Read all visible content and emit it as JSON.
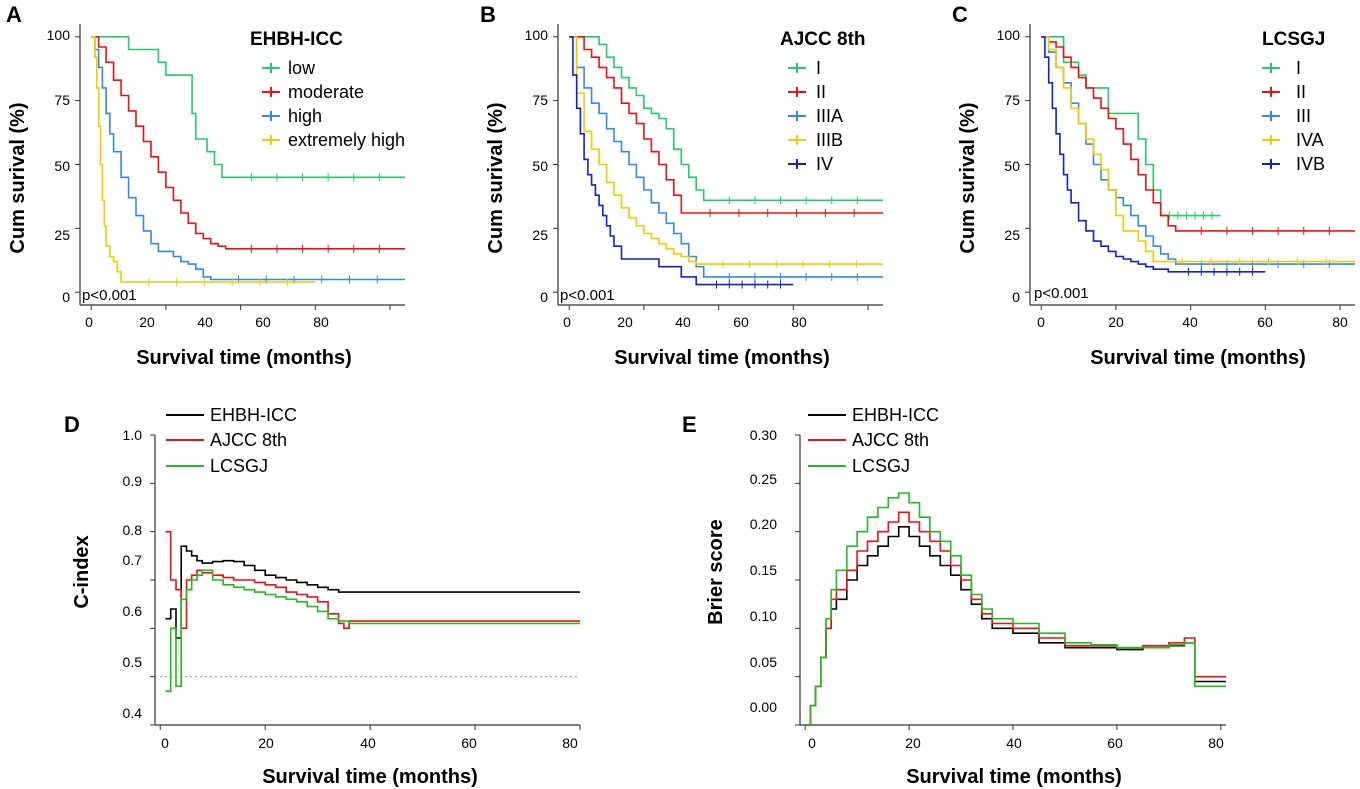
{
  "charts": [
    {
      "id": "A",
      "type": "line",
      "label": "A",
      "legend_title": "EHBH-ICC",
      "xlabel": "Survival time (months)",
      "ylabel": "Cum surival (%)",
      "xlim": [
        -3,
        84
      ],
      "ylim": [
        -5,
        105
      ],
      "xticks": [
        "0",
        "20",
        "40",
        "60",
        "80"
      ],
      "yticks": [
        "0",
        "25",
        "50",
        "75",
        "100"
      ],
      "p_text": "p<0.001",
      "series": [
        {
          "name": "low",
          "color": "#22cc66",
          "x": [
            0,
            8,
            10,
            11,
            12,
            13,
            14,
            15,
            16,
            17,
            18,
            19,
            20,
            21,
            22,
            23,
            24,
            25,
            26,
            27,
            28,
            29,
            30,
            31,
            32,
            33,
            34,
            35,
            36,
            84
          ],
          "y": [
            100,
            100,
            95,
            95,
            95,
            95,
            95,
            95,
            95,
            95,
            90,
            90,
            85,
            85,
            85,
            85,
            85,
            85,
            85,
            70,
            60,
            60,
            60,
            55,
            55,
            50,
            50,
            45,
            45,
            45
          ]
        },
        {
          "name": "moderate",
          "color": "#ee1111",
          "x": [
            0,
            2,
            4,
            6,
            8,
            10,
            12,
            14,
            16,
            18,
            20,
            22,
            24,
            26,
            28,
            30,
            32,
            34,
            36,
            84
          ],
          "y": [
            100,
            96,
            90,
            83,
            77,
            71,
            65,
            59,
            53,
            47,
            41,
            36,
            31,
            27,
            23,
            21,
            19,
            18,
            17,
            17
          ]
        },
        {
          "name": "high",
          "color": "#3388ee",
          "x": [
            0,
            1,
            2,
            3,
            4,
            5,
            6,
            8,
            10,
            12,
            14,
            16,
            18,
            20,
            22,
            24,
            26,
            28,
            30,
            32,
            84
          ],
          "y": [
            100,
            95,
            88,
            80,
            70,
            62,
            55,
            45,
            37,
            30,
            24,
            19,
            16,
            16,
            14,
            12,
            11,
            9,
            6,
            5,
            5
          ]
        },
        {
          "name": "extremely high",
          "color": "#f2cc00",
          "x": [
            0,
            1,
            1.5,
            2,
            2.5,
            3,
            3.5,
            4,
            5,
            6,
            7,
            8,
            60
          ],
          "y": [
            100,
            92,
            80,
            65,
            50,
            36,
            26,
            18,
            14,
            12,
            8,
            4,
            4
          ]
        }
      ]
    },
    {
      "id": "B",
      "type": "line",
      "label": "B",
      "legend_title": "AJCC 8th",
      "xlabel": "Survival time (months)",
      "ylabel": "Cum surival (%)",
      "xlim": [
        -3,
        84
      ],
      "ylim": [
        -5,
        105
      ],
      "xticks": [
        "0",
        "20",
        "40",
        "60",
        "80"
      ],
      "yticks": [
        "0",
        "25",
        "50",
        "75",
        "100"
      ],
      "p_text": "p<0.001",
      "series": [
        {
          "name": "I",
          "color": "#22cc66",
          "x": [
            0,
            8,
            10,
            12,
            14,
            16,
            18,
            20,
            22,
            24,
            26,
            28,
            30,
            32,
            34,
            36,
            84
          ],
          "y": [
            100,
            97,
            92,
            88,
            84,
            80,
            77,
            72,
            70,
            68,
            64,
            56,
            50,
            45,
            40,
            36,
            36
          ]
        },
        {
          "name": "II",
          "color": "#ee1111",
          "x": [
            0,
            4,
            6,
            8,
            10,
            12,
            14,
            16,
            18,
            20,
            22,
            24,
            26,
            28,
            30,
            84
          ],
          "y": [
            100,
            95,
            92,
            88,
            84,
            80,
            74,
            70,
            66,
            60,
            55,
            50,
            44,
            38,
            31,
            31
          ]
        },
        {
          "name": "IIIA",
          "color": "#3388ee",
          "x": [
            0,
            2,
            4,
            6,
            8,
            10,
            12,
            14,
            16,
            18,
            20,
            22,
            24,
            26,
            28,
            30,
            32,
            34,
            36,
            84
          ],
          "y": [
            100,
            88,
            80,
            74,
            70,
            64,
            59,
            55,
            50,
            45,
            40,
            35,
            31,
            27,
            23,
            19,
            14,
            10,
            6,
            6
          ]
        },
        {
          "name": "IIIB",
          "color": "#f2cc00",
          "x": [
            0,
            2,
            4,
            6,
            8,
            10,
            12,
            14,
            16,
            18,
            20,
            22,
            24,
            26,
            28,
            30,
            32,
            34,
            84
          ],
          "y": [
            100,
            78,
            63,
            56,
            50,
            43,
            38,
            33,
            29,
            26,
            23,
            21,
            19,
            17,
            15,
            14,
            12,
            11,
            11
          ]
        },
        {
          "name": "IV",
          "color": "#1122cc",
          "x": [
            0,
            1,
            2,
            3,
            4,
            5,
            6,
            7,
            8,
            9,
            10,
            11,
            12,
            14,
            16,
            18,
            20,
            22,
            24,
            26,
            28,
            30,
            32,
            34,
            36,
            60
          ],
          "y": [
            100,
            85,
            72,
            62,
            52,
            46,
            42,
            38,
            34,
            30,
            26,
            22,
            18,
            13,
            13,
            13,
            13,
            13,
            10,
            10,
            10,
            6,
            6,
            3,
            3,
            3
          ]
        }
      ]
    },
    {
      "id": "C",
      "type": "line",
      "label": "C",
      "legend_title": "LCSGJ",
      "xlabel": "Survival time (months)",
      "ylabel": "Cum surival (%)",
      "xlim": [
        -3,
        84
      ],
      "ylim": [
        -5,
        105
      ],
      "xticks": [
        "0",
        "20",
        "40",
        "60",
        "80"
      ],
      "yticks": [
        "0",
        "25",
        "50",
        "75",
        "100"
      ],
      "p_text": "p<0.001",
      "series": [
        {
          "name": "I",
          "color": "#22cc66",
          "x": [
            0,
            4,
            6,
            8,
            10,
            12,
            14,
            16,
            18,
            20,
            22,
            24,
            26,
            28,
            30,
            32,
            48
          ],
          "y": [
            100,
            100,
            90,
            90,
            85,
            80,
            80,
            80,
            70,
            70,
            70,
            70,
            60,
            50,
            40,
            30,
            30
          ]
        },
        {
          "name": "II",
          "color": "#ee1111",
          "x": [
            0,
            2,
            4,
            6,
            8,
            10,
            12,
            14,
            16,
            18,
            20,
            22,
            24,
            26,
            28,
            30,
            32,
            34,
            36,
            84
          ],
          "y": [
            100,
            98,
            96,
            92,
            88,
            84,
            80,
            76,
            72,
            68,
            64,
            58,
            52,
            46,
            40,
            35,
            30,
            26,
            24,
            24
          ]
        },
        {
          "name": "III",
          "color": "#3388ee",
          "x": [
            0,
            2,
            4,
            6,
            8,
            10,
            12,
            14,
            16,
            18,
            20,
            22,
            24,
            26,
            28,
            30,
            32,
            34,
            36,
            84
          ],
          "y": [
            100,
            94,
            88,
            82,
            74,
            66,
            58,
            50,
            44,
            40,
            37,
            34,
            30,
            26,
            22,
            18,
            15,
            13,
            11,
            11
          ]
        },
        {
          "name": "IVA",
          "color": "#f2cc00",
          "x": [
            0,
            2,
            4,
            6,
            8,
            10,
            12,
            14,
            16,
            18,
            20,
            22,
            24,
            26,
            28,
            30,
            84
          ],
          "y": [
            100,
            95,
            88,
            80,
            72,
            66,
            60,
            54,
            48,
            40,
            30,
            24,
            24,
            20,
            16,
            12,
            12
          ]
        },
        {
          "name": "IVB",
          "color": "#1122cc",
          "x": [
            0,
            1,
            2,
            3,
            4,
            5,
            6,
            7,
            8,
            10,
            12,
            14,
            16,
            18,
            20,
            22,
            24,
            26,
            28,
            30,
            32,
            34,
            36,
            60
          ],
          "y": [
            100,
            92,
            82,
            72,
            62,
            54,
            46,
            40,
            35,
            28,
            24,
            20,
            18,
            16,
            14,
            13,
            12,
            11,
            10,
            9,
            9,
            8,
            8,
            8
          ]
        }
      ]
    },
    {
      "id": "D",
      "type": "line",
      "label": "D",
      "xlabel": "Survival time (months)",
      "ylabel": "C-index",
      "xlim": [
        -1,
        80
      ],
      "ylim": [
        0.4,
        1.0
      ],
      "xticks": [
        "0",
        "20",
        "40",
        "60",
        "80"
      ],
      "yticks": [
        "0.4",
        "0.5",
        "0.6",
        "0.7",
        "0.8",
        "0.9",
        "1.0"
      ],
      "reference_line": 0.5,
      "series": [
        {
          "name": "EHBH-ICC",
          "color": "#000000",
          "x": [
            1,
            2,
            3,
            4,
            5,
            6,
            7,
            8,
            10,
            12,
            14,
            16,
            18,
            20,
            22,
            24,
            26,
            28,
            30,
            32,
            34,
            36,
            80
          ],
          "y": [
            0.62,
            0.64,
            0.58,
            0.77,
            0.76,
            0.75,
            0.74,
            0.735,
            0.738,
            0.74,
            0.738,
            0.73,
            0.72,
            0.71,
            0.705,
            0.7,
            0.695,
            0.69,
            0.685,
            0.68,
            0.675,
            0.675,
            0.675
          ]
        },
        {
          "name": "AJCC 8th",
          "color": "#ee1111",
          "x": [
            1,
            2,
            3,
            4,
            5,
            6,
            7,
            8,
            10,
            12,
            14,
            16,
            18,
            20,
            22,
            24,
            26,
            28,
            30,
            32,
            34,
            35,
            36,
            80
          ],
          "y": [
            0.8,
            0.7,
            0.68,
            0.6,
            0.7,
            0.71,
            0.72,
            0.715,
            0.71,
            0.705,
            0.7,
            0.7,
            0.695,
            0.69,
            0.685,
            0.675,
            0.67,
            0.665,
            0.655,
            0.63,
            0.61,
            0.6,
            0.615,
            0.615
          ]
        },
        {
          "name": "LCSGJ",
          "color": "#22bb22",
          "x": [
            1,
            2,
            3,
            4,
            5,
            6,
            7,
            8,
            10,
            12,
            14,
            16,
            18,
            20,
            22,
            24,
            26,
            28,
            30,
            32,
            34,
            36,
            80
          ],
          "y": [
            0.47,
            0.6,
            0.48,
            0.66,
            0.68,
            0.7,
            0.71,
            0.72,
            0.7,
            0.69,
            0.685,
            0.68,
            0.675,
            0.67,
            0.665,
            0.66,
            0.655,
            0.645,
            0.635,
            0.62,
            0.615,
            0.61,
            0.61
          ]
        }
      ]
    },
    {
      "id": "E",
      "type": "line",
      "label": "E",
      "xlabel": "Survival time (months)",
      "ylabel": "Brier score",
      "xlim": [
        -1,
        81
      ],
      "ylim": [
        0,
        0.3
      ],
      "xticks": [
        "0",
        "20",
        "40",
        "60",
        "80"
      ],
      "yticks": [
        "0.00",
        "0.05",
        "0.10",
        "0.15",
        "0.20",
        "0.25",
        "0.30"
      ],
      "series": [
        {
          "name": "EHBH-ICC",
          "color": "#000000",
          "x": [
            0,
            1,
            2,
            3,
            4,
            5,
            6,
            8,
            10,
            12,
            14,
            16,
            18,
            20,
            22,
            24,
            26,
            28,
            30,
            32,
            34,
            36,
            40,
            45,
            50,
            55,
            60,
            65,
            70,
            73,
            75,
            77,
            81
          ],
          "y": [
            0,
            0.02,
            0.04,
            0.07,
            0.1,
            0.12,
            0.13,
            0.15,
            0.165,
            0.175,
            0.185,
            0.195,
            0.205,
            0.195,
            0.185,
            0.175,
            0.165,
            0.155,
            0.14,
            0.125,
            0.11,
            0.1,
            0.095,
            0.085,
            0.08,
            0.08,
            0.078,
            0.08,
            0.082,
            0.085,
            0.045,
            0.045,
            0.045
          ]
        },
        {
          "name": "AJCC 8th",
          "color": "#ee1111",
          "x": [
            0,
            1,
            2,
            3,
            4,
            5,
            6,
            8,
            10,
            12,
            14,
            16,
            18,
            20,
            22,
            24,
            26,
            28,
            30,
            32,
            34,
            36,
            40,
            45,
            50,
            55,
            60,
            65,
            70,
            73,
            75,
            77,
            81
          ],
          "y": [
            0,
            0.02,
            0.04,
            0.07,
            0.1,
            0.13,
            0.14,
            0.16,
            0.18,
            0.19,
            0.2,
            0.21,
            0.22,
            0.21,
            0.2,
            0.19,
            0.18,
            0.165,
            0.15,
            0.13,
            0.115,
            0.105,
            0.1,
            0.09,
            0.082,
            0.082,
            0.08,
            0.082,
            0.085,
            0.09,
            0.05,
            0.05,
            0.05
          ]
        },
        {
          "name": "LCSGJ",
          "color": "#22bb22",
          "x": [
            0,
            1,
            2,
            3,
            4,
            5,
            6,
            8,
            10,
            12,
            14,
            16,
            18,
            20,
            22,
            24,
            26,
            28,
            30,
            32,
            34,
            36,
            40,
            45,
            50,
            55,
            60,
            65,
            70,
            73,
            75,
            77,
            81
          ],
          "y": [
            0,
            0.02,
            0.04,
            0.07,
            0.11,
            0.14,
            0.16,
            0.185,
            0.2,
            0.215,
            0.225,
            0.235,
            0.24,
            0.23,
            0.215,
            0.2,
            0.19,
            0.175,
            0.155,
            0.135,
            0.12,
            0.11,
            0.105,
            0.095,
            0.085,
            0.083,
            0.08,
            0.08,
            0.083,
            0.085,
            0.04,
            0.04,
            0.04
          ]
        }
      ]
    }
  ]
}
